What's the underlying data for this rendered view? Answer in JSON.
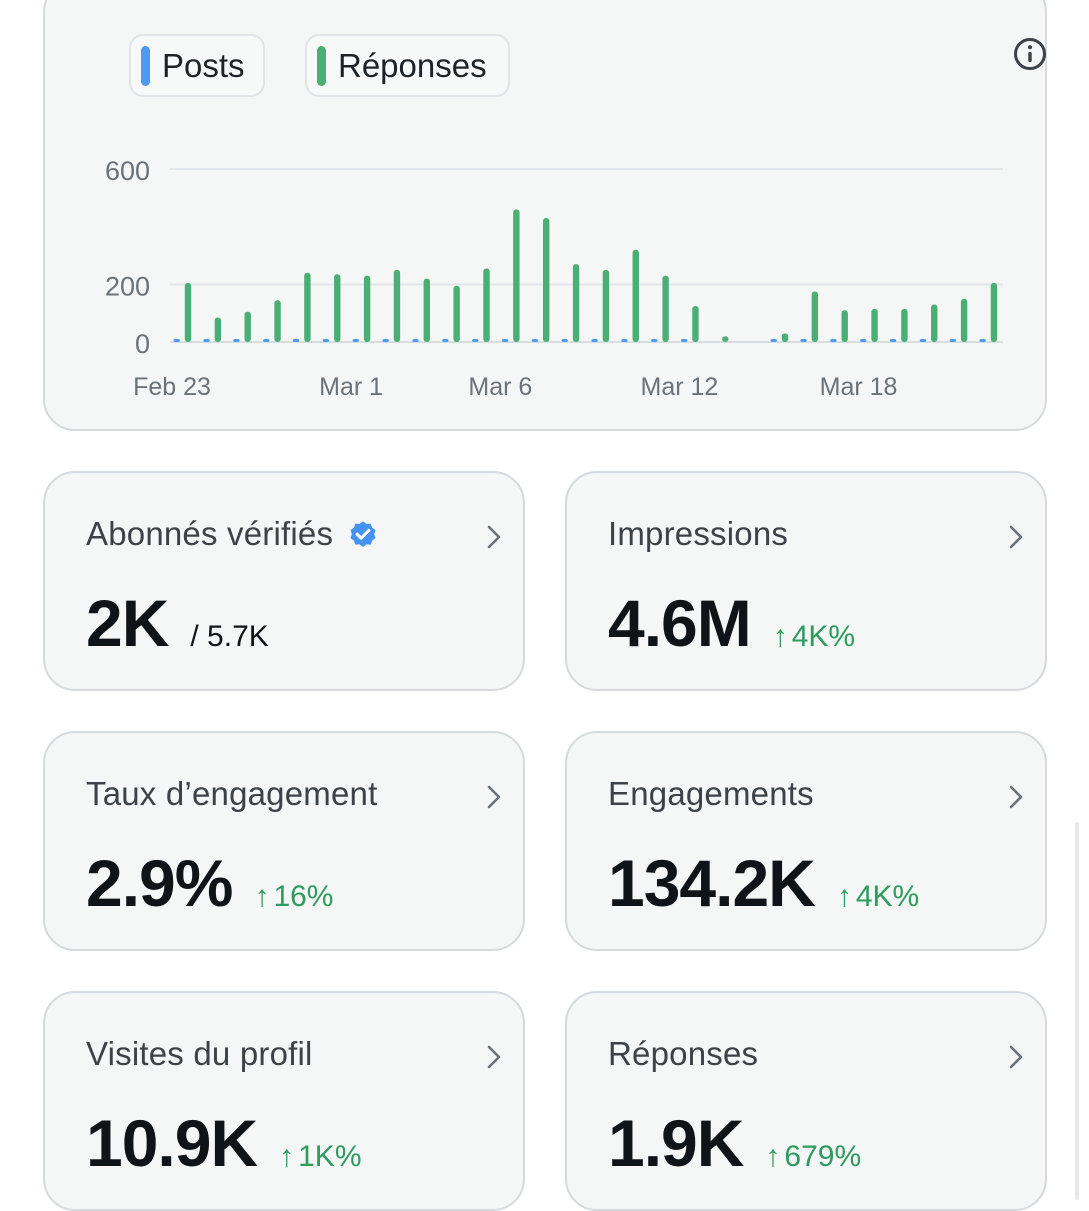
{
  "legend": {
    "posts_label": "Posts",
    "replies_label": "Réponses"
  },
  "colors": {
    "posts": "#4c9bf0",
    "replies": "#4aaf74",
    "positive": "#2e9b5f",
    "verified": "#4593f0"
  },
  "icons": {
    "info": "info-circle-icon",
    "verified": "verified-badge-icon",
    "chevron": "chevron-right-icon",
    "arrow_up": "arrow-up-icon"
  },
  "chart_data": {
    "type": "bar",
    "title": "",
    "xlabel": "",
    "ylabel": "",
    "ylim": [
      0,
      600
    ],
    "y_ticks": [
      "600",
      "200",
      "0"
    ],
    "y_tick_values": [
      600,
      200,
      0
    ],
    "x_tick_labels": [
      "Feb 23",
      "Mar 1",
      "Mar 6",
      "Mar 12",
      "Mar 18"
    ],
    "x_tick_indices": [
      0,
      6,
      11,
      17,
      23
    ],
    "series": [
      {
        "name": "Posts",
        "values": [
          4,
          4,
          6,
          5,
          3,
          3,
          3,
          4,
          3,
          3,
          2,
          3,
          2,
          2,
          2,
          4,
          3,
          2,
          0,
          0,
          2,
          2,
          2,
          2,
          2,
          2,
          4,
          3
        ]
      },
      {
        "name": "Réponses",
        "values": [
          205,
          85,
          105,
          145,
          240,
          235,
          230,
          250,
          220,
          195,
          255,
          460,
          430,
          270,
          250,
          320,
          230,
          125,
          20,
          0,
          30,
          175,
          110,
          115,
          115,
          130,
          150,
          205
        ]
      }
    ]
  },
  "metrics": {
    "verified_followers": {
      "title": "Abonnés vérifiés",
      "value": "2K",
      "total": "/ 5.7K"
    },
    "impressions": {
      "title": "Impressions",
      "value": "4.6M",
      "arrow": "↑",
      "change": "4K%"
    },
    "engagement_rate": {
      "title": "Taux d’engagement",
      "value": "2.9%",
      "arrow": "↑",
      "change": "16%"
    },
    "engagements": {
      "title": "Engagements",
      "value": "134.2K",
      "arrow": "↑",
      "change": "4K%"
    },
    "profile_visits": {
      "title": "Visites du profil",
      "value": "10.9K",
      "arrow": "↑",
      "change": "1K%"
    },
    "replies": {
      "title": "Réponses",
      "value": "1.9K",
      "arrow": "↑",
      "change": "679%"
    }
  }
}
